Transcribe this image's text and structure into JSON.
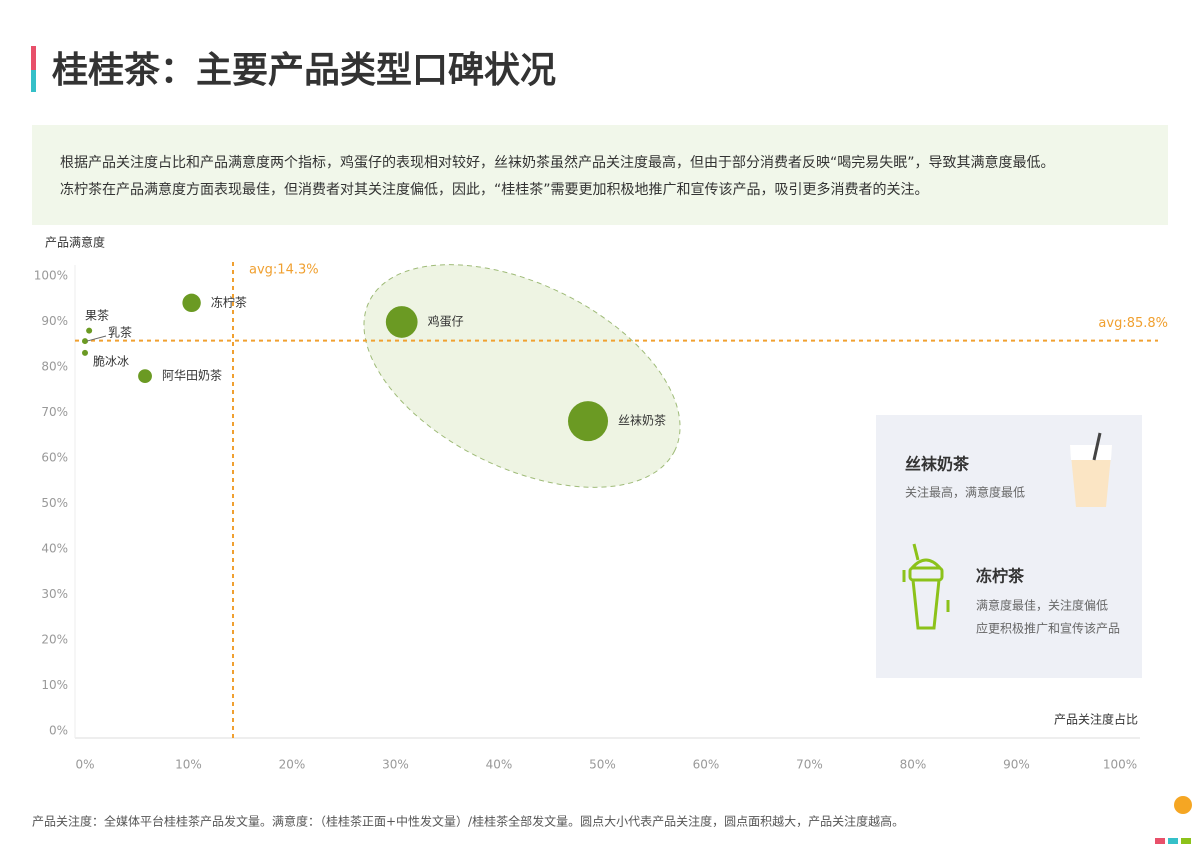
{
  "chart_data": {
    "type": "scatter",
    "title": "桂桂茶：主要产品类型口碑状况",
    "summary": [
      "根据产品关注度占比和产品满意度两个指标，鸡蛋仔的表现相对较好，丝袜奶茶虽然产品关注度最高，但由于部分消费者反映“喝完易失眠”，导致其满意度最低。",
      "冻柠茶在产品满意度方面表现最佳，但消费者对其关注度偏低，因此，“桂桂茶”需要更加积极地推广和宣传该产品，吸引更多消费者的关注。"
    ],
    "y_label": "产品满意度",
    "x_label": "产品关注度占比",
    "categories": [
      "果茶",
      "乳茶",
      "脆冰冰",
      "冻柠茶",
      "阿华田奶茶",
      "鸡蛋仔",
      "丝袜奶茶"
    ],
    "x": [
      0.4,
      0,
      0,
      10.3,
      5.8,
      30.6,
      48.6
    ],
    "values": [
      88,
      85.7,
      83.1,
      94.1,
      78,
      89.9,
      68.1
    ],
    "color": "#6b9a23",
    "xlim": [
      0,
      100
    ],
    "ylim": [
      0,
      100
    ],
    "xticks": [
      {
        "value": 0,
        "label": "0%"
      },
      {
        "value": 10,
        "label": "10%"
      },
      {
        "value": 20,
        "label": "20%"
      },
      {
        "value": 30,
        "label": "30%"
      },
      {
        "value": 40,
        "label": "40%"
      },
      {
        "value": 50,
        "label": "50%"
      },
      {
        "value": 60,
        "label": "60%"
      },
      {
        "value": 70,
        "label": "70%"
      },
      {
        "value": 80,
        "label": "80%"
      },
      {
        "value": 90,
        "label": "90%"
      },
      {
        "value": 100,
        "label": "100%"
      }
    ],
    "yticks": [
      {
        "value": 0,
        "label": "0%"
      },
      {
        "value": 10,
        "label": "10%"
      },
      {
        "value": 20,
        "label": "20%"
      },
      {
        "value": 30,
        "label": "30%"
      },
      {
        "value": 40,
        "label": "40%"
      },
      {
        "value": 50,
        "label": "50%"
      },
      {
        "value": 60,
        "label": "60%"
      },
      {
        "value": 70,
        "label": "70%"
      },
      {
        "value": 80,
        "label": "80%"
      },
      {
        "value": 90,
        "label": "90%"
      },
      {
        "value": 100,
        "label": "100%"
      }
    ],
    "x_average": {
      "value": 14.3,
      "label": "avg:14.3%"
    },
    "y_average": {
      "value": 85.8,
      "label": "avg:85.8%"
    },
    "average_color": "#f0a030",
    "callouts": [
      {
        "title": "丝袜奶茶",
        "lines": [
          "关注最高，满意度最低"
        ]
      },
      {
        "title": "冻柠茶",
        "lines": [
          "满意度最佳，关注度偏低",
          "应更积极推广和宣传该产品"
        ]
      }
    ],
    "footnote": "产品关注度：全媒体平台桂桂茶产品发文量。满意度：（桂桂茶正面+中性发文量）/桂桂茶全部发文量。圆点大小代表产品关注度，圆点面积越大，产品关注度越高。"
  }
}
